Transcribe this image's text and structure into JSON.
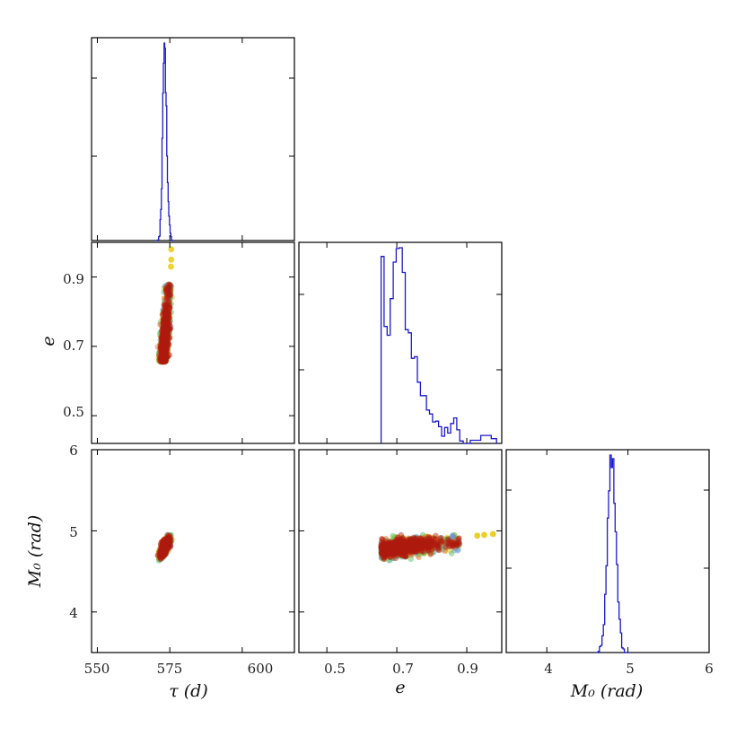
{
  "chart_data": [
    {
      "type": "histogram",
      "panel": "tau-hist",
      "xlim": [
        548,
        618
      ],
      "x_ticks": [
        550,
        575,
        600
      ],
      "series": [
        {
          "values": {
            "center": 573.2,
            "sd": 1.05,
            "bins": 28,
            "range": [
              570.0,
              576.5
            ]
          }
        }
      ]
    },
    {
      "type": "scatter",
      "panel": "e-vs-tau",
      "xlim": [
        548,
        618
      ],
      "ylim": [
        0.42,
        1.0
      ],
      "y_ticks": [
        0.5,
        0.7,
        0.9
      ],
      "ytick_labels": [
        "0.5",
        "0.7",
        "0.9"
      ],
      "ylabel": "e",
      "series": [
        {
          "color": "#e8c800",
          "points": [
            [
              575.5,
              0.98
            ],
            [
              575.5,
              0.95
            ],
            [
              575.4,
              0.93
            ]
          ]
        }
      ]
    },
    {
      "type": "histogram",
      "panel": "e-hist",
      "xlim": [
        0.42,
        1.0
      ],
      "series": [
        {
          "values": {
            "mode": 0.71,
            "skew": "right",
            "range": [
              0.655,
              0.985
            ]
          }
        }
      ]
    },
    {
      "type": "scatter",
      "panel": "M0-vs-tau",
      "xlim": [
        548,
        618
      ],
      "ylim": [
        3.5,
        6.0
      ],
      "x_ticks": [
        550,
        575,
        600
      ],
      "xtick_labels": [
        "550",
        "575",
        "600"
      ],
      "y_ticks": [
        4,
        5,
        6
      ],
      "ytick_labels": [
        "4",
        "5",
        "6"
      ],
      "xlabel": "τ (d)",
      "ylabel": "M₀ (rad)"
    },
    {
      "type": "scatter",
      "panel": "M0-vs-e",
      "xlim": [
        0.42,
        1.0
      ],
      "ylim": [
        3.5,
        6.0
      ],
      "x_ticks": [
        0.5,
        0.7,
        0.9
      ],
      "xtick_labels": [
        "0.5",
        "0.7",
        "0.9"
      ],
      "xlabel": "e",
      "series": [
        {
          "color": "#e8c800",
          "points": [
            [
              0.93,
              4.94
            ],
            [
              0.95,
              4.95
            ],
            [
              0.975,
              4.96
            ]
          ]
        },
        {
          "color": "#6aa0e0",
          "points": [
            [
              0.86,
              4.93
            ]
          ]
        }
      ]
    },
    {
      "type": "histogram",
      "panel": "M0-hist",
      "xlim": [
        3.5,
        6.0
      ],
      "x_ticks": [
        4,
        5,
        6
      ],
      "xtick_labels": [
        "4",
        "5",
        "6"
      ],
      "xlabel": "M₀ (rad)",
      "series": [
        {
          "values": {
            "center": 4.82,
            "sd": 0.065,
            "bins": 26,
            "range": [
              4.6,
              5.02
            ]
          }
        }
      ]
    }
  ],
  "colors": {
    "hist": "#1a1acc",
    "walkers": [
      "#e8c800",
      "#6aa0e0",
      "#5bbf6a",
      "#e07a2a",
      "#b01a10"
    ]
  }
}
